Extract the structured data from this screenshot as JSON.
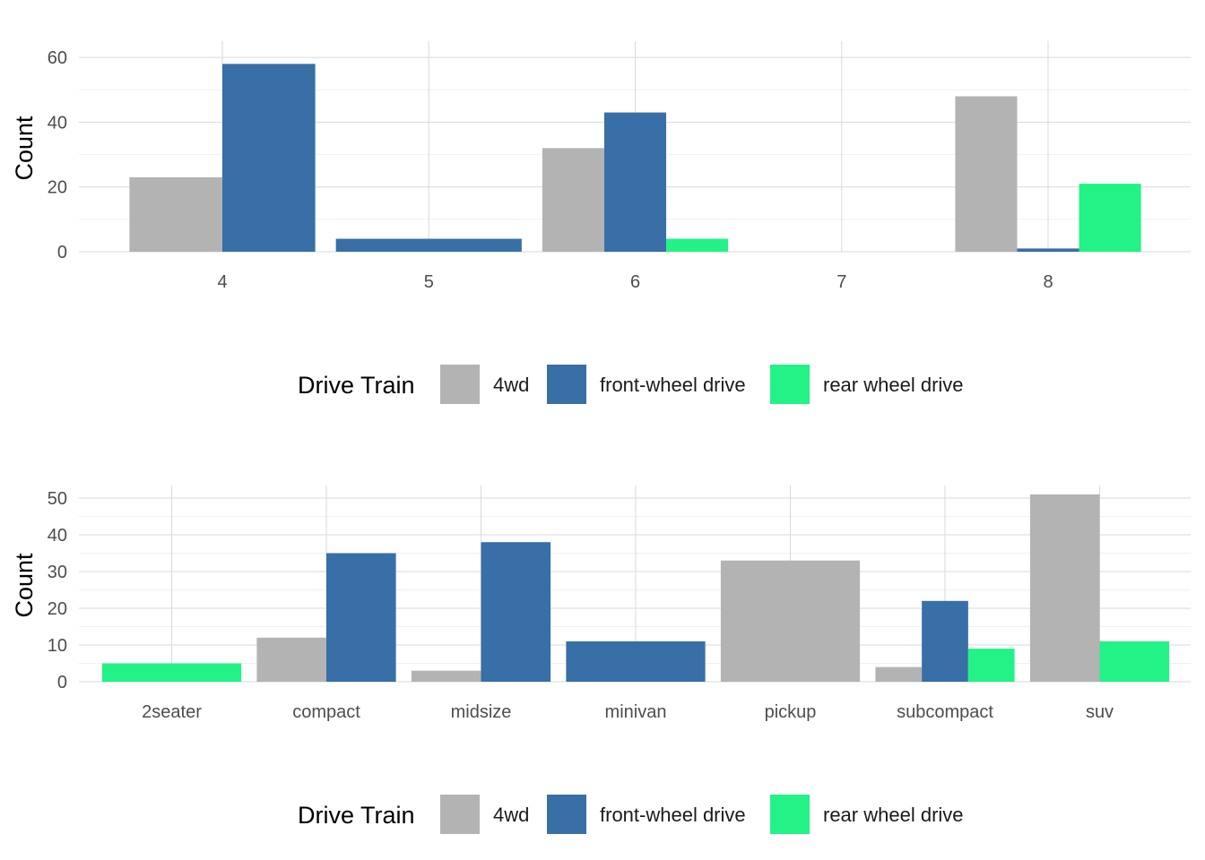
{
  "colors": {
    "4wd": "#b3b3b3",
    "front-wheel drive": "#386fa6",
    "rear wheel drive": "#23f287"
  },
  "legend": {
    "title": "Drive Train",
    "entries": [
      "4wd",
      "front-wheel drive",
      "rear wheel drive"
    ]
  },
  "chart_data": [
    {
      "type": "bar",
      "position": "dodge",
      "title": "",
      "xlabel": "",
      "ylabel": "Count",
      "categories": [
        "4",
        "5",
        "6",
        "7",
        "8"
      ],
      "ylim": [
        0,
        62
      ],
      "yticks": [
        0,
        20,
        40,
        60
      ],
      "grid": true,
      "legend_position": "bottom",
      "legend_title": "Drive Train",
      "groups": [
        {
          "x": "4",
          "bars": [
            {
              "series": "4wd",
              "value": 23
            },
            {
              "series": "front-wheel drive",
              "value": 58
            }
          ]
        },
        {
          "x": "5",
          "bars": [
            {
              "series": "front-wheel drive",
              "value": 4
            }
          ]
        },
        {
          "x": "6",
          "bars": [
            {
              "series": "4wd",
              "value": 32
            },
            {
              "series": "front-wheel drive",
              "value": 43
            },
            {
              "series": "rear wheel drive",
              "value": 4
            }
          ]
        },
        {
          "x": "8",
          "bars": [
            {
              "series": "4wd",
              "value": 48
            },
            {
              "series": "front-wheel drive",
              "value": 1
            },
            {
              "series": "rear wheel drive",
              "value": 21
            }
          ]
        }
      ]
    },
    {
      "type": "bar",
      "position": "dodge",
      "title": "",
      "xlabel": "",
      "ylabel": "Count",
      "categories": [
        "2seater",
        "compact",
        "midsize",
        "minivan",
        "pickup",
        "subcompact",
        "suv"
      ],
      "ylim": [
        0,
        54
      ],
      "yticks": [
        0,
        10,
        20,
        30,
        40,
        50
      ],
      "grid": true,
      "legend_position": "bottom",
      "legend_title": "Drive Train",
      "groups": [
        {
          "x": "2seater",
          "bars": [
            {
              "series": "rear wheel drive",
              "value": 5
            }
          ]
        },
        {
          "x": "compact",
          "bars": [
            {
              "series": "4wd",
              "value": 12
            },
            {
              "series": "front-wheel drive",
              "value": 35
            }
          ]
        },
        {
          "x": "midsize",
          "bars": [
            {
              "series": "4wd",
              "value": 3
            },
            {
              "series": "front-wheel drive",
              "value": 38
            }
          ]
        },
        {
          "x": "minivan",
          "bars": [
            {
              "series": "front-wheel drive",
              "value": 11
            }
          ]
        },
        {
          "x": "pickup",
          "bars": [
            {
              "series": "4wd",
              "value": 33
            }
          ]
        },
        {
          "x": "subcompact",
          "bars": [
            {
              "series": "4wd",
              "value": 4
            },
            {
              "series": "front-wheel drive",
              "value": 22
            },
            {
              "series": "rear wheel drive",
              "value": 9
            }
          ]
        },
        {
          "x": "suv",
          "bars": [
            {
              "series": "4wd",
              "value": 51
            },
            {
              "series": "rear wheel drive",
              "value": 11
            }
          ]
        }
      ]
    }
  ]
}
